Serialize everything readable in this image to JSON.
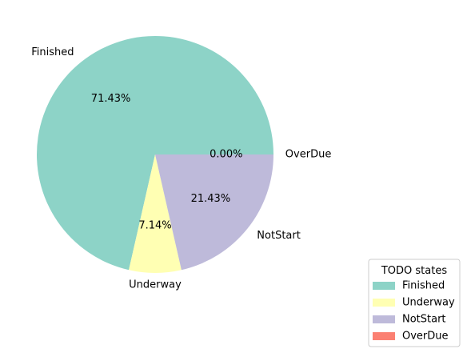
{
  "chart_data": {
    "type": "pie",
    "categories": [
      "Finished",
      "Underway",
      "NotStart",
      "OverDue"
    ],
    "values": [
      71.43,
      7.14,
      21.43,
      0.0
    ],
    "percent_labels": [
      "71.43%",
      "7.14%",
      "21.43%",
      "0.00%"
    ],
    "colors": [
      "#8dd3c7",
      "#ffffb3",
      "#bebada",
      "#fb8072"
    ],
    "legend": {
      "title": "TODO states",
      "placement": "bottom-right",
      "entries": [
        "Finished",
        "Underway",
        "NotStart",
        "OverDue"
      ]
    }
  }
}
